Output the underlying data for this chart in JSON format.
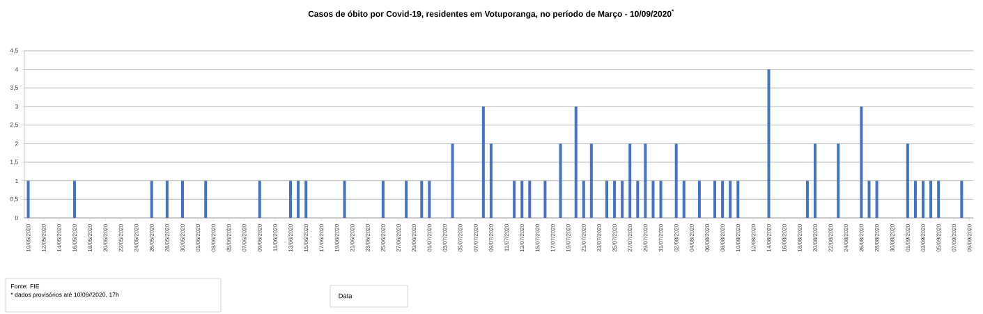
{
  "chart_data": {
    "type": "bar",
    "title": "Casos de óbito por Covid-19, residentes em Votuporanga, no período de Março - 10/09/2020$^{*}$",
    "annotations": [
      "Fonte: FIE",
      "* dados provisórios até  10/09//2020, 17h",
      "Data"
    ],
    "categories": [
      "10/05/2020",
      null,
      "12/05/2020",
      null,
      "14/05/2020",
      null,
      "16/05/2020",
      null,
      "18/05/2020",
      null,
      "20/05/2020",
      null,
      "22/05/2020",
      null,
      "24/05/2020",
      null,
      "26/05/2020",
      null,
      "28/05/2020",
      null,
      "30/05/2020",
      null,
      "01/06/2020",
      null,
      "03/06/2020",
      null,
      "05/06/2020",
      null,
      "07/06/2020",
      null,
      "09/06/2020",
      null,
      "11/06/2020",
      null,
      "13/06/2020",
      null,
      "15/06/2020",
      null,
      "17/06/2020",
      null,
      "19/06/2020",
      null,
      "21/06/2020",
      null,
      "23/06/2020",
      null,
      "25/06/2020",
      null,
      "27/06/2020",
      null,
      "29/06/2020",
      null,
      "01/07/2020",
      null,
      "03/07/2020",
      null,
      "05/07/2020",
      null,
      "07/07/2020",
      null,
      "09/07/2020",
      null,
      "11/07/2020",
      null,
      "13/07/2020",
      null,
      "15/07/2020",
      null,
      "17/07/2020",
      null,
      "19/07/2020",
      null,
      "21/07/2020",
      null,
      "23/07/2020",
      null,
      "25/07/2020",
      null,
      "27/07/2020",
      null,
      "29/07/2020",
      null,
      "31/07/2020",
      null,
      "02/08/2020",
      null,
      "04/08/2020",
      null,
      "06/08/2020",
      null,
      "08/08/2020",
      null,
      "10/08/2020",
      null,
      "12/08/2020",
      null,
      "14/08/2020",
      null,
      "16/08/2020",
      null,
      "18/08/2020",
      null,
      "20/08/2020",
      null,
      "22/08/2020",
      null,
      "24/08/2020",
      null,
      "26/08/2020",
      null,
      "28/08/2020",
      null,
      "30/08/2020",
      null,
      "01/09/2020",
      null,
      "03/09/2020",
      null,
      "05/09/2020",
      null,
      "07/09/2020",
      null,
      "09/09/2020"
    ],
    "values": [
      1,
      0,
      0,
      0,
      0,
      0,
      1,
      0,
      0,
      0,
      0,
      0,
      0,
      0,
      0,
      0,
      1,
      0,
      1,
      0,
      1,
      0,
      0,
      1,
      0,
      0,
      0,
      0,
      0,
      0,
      1,
      0,
      0,
      0,
      1,
      1,
      1,
      0,
      0,
      0,
      0,
      1,
      0,
      0,
      0,
      0,
      1,
      0,
      0,
      1,
      0,
      1,
      1,
      0,
      0,
      2,
      0,
      0,
      0,
      3,
      2,
      0,
      0,
      1,
      1,
      1,
      0,
      1,
      0,
      2,
      0,
      3,
      1,
      2,
      0,
      1,
      1,
      1,
      2,
      1,
      2,
      1,
      1,
      0,
      2,
      1,
      0,
      1,
      0,
      1,
      1,
      1,
      1,
      0,
      0,
      0,
      4,
      0,
      0,
      0,
      0,
      1,
      2,
      0,
      0,
      2,
      0,
      0,
      3,
      1,
      1,
      0,
      0,
      0,
      2,
      1,
      1,
      1,
      1,
      0,
      0,
      1,
      0
    ],
    "color": "#4472c4",
    "ylim": [
      0,
      4.5
    ],
    "yticks": [
      0,
      {
        "value": 0.5,
        "label": "0,5"
      },
      1,
      {
        "value": 1.5,
        "label": "1,5"
      },
      2,
      {
        "value": 2.5,
        "label": "2,5"
      },
      3,
      {
        "value": 3.5,
        "label": "3,5"
      },
      4,
      {
        "value": 4.5,
        "label": "4,5"
      }
    ],
    "grid": "y"
  }
}
